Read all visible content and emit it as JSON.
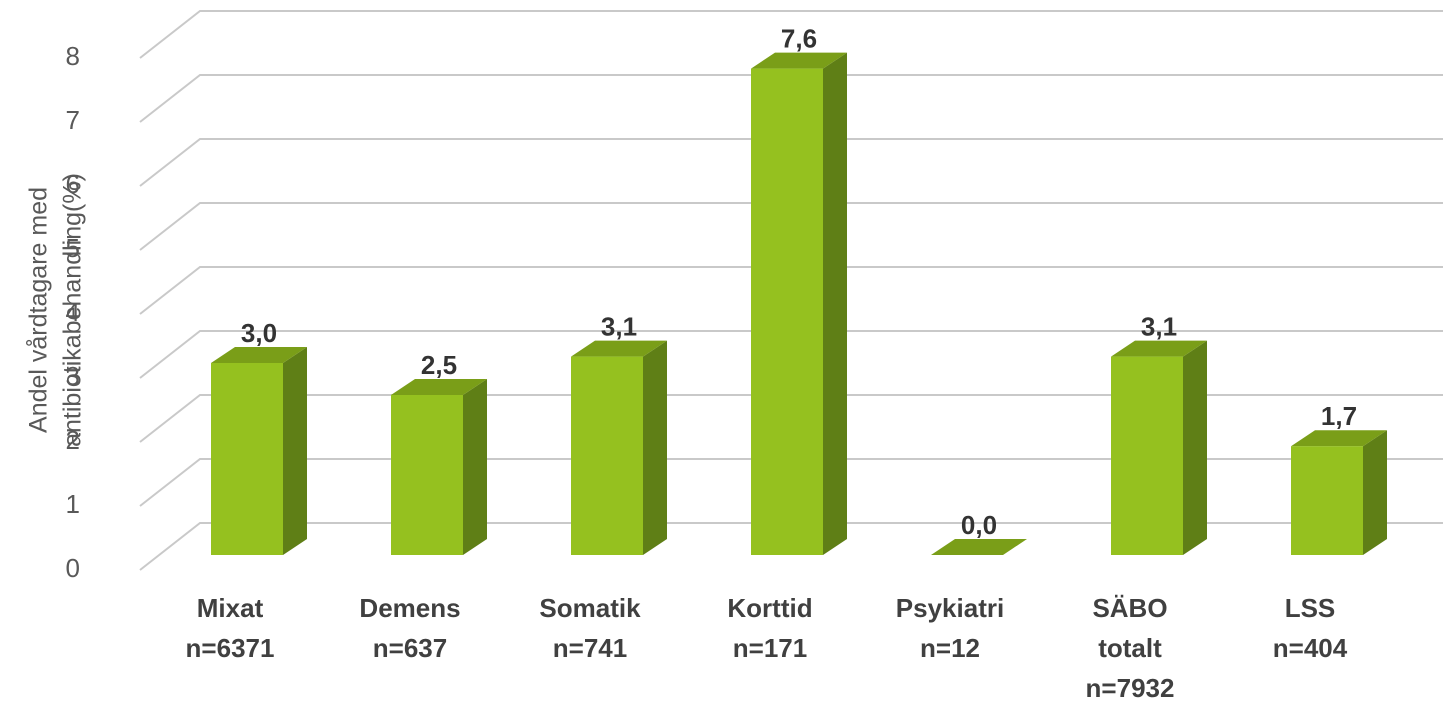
{
  "chart_data": {
    "type": "bar3d",
    "y_label": [
      "Andel vårdtagare med",
      "antibiotikabehandling(%)"
    ],
    "categories": [
      [
        "Mixat",
        "n=6371"
      ],
      [
        "Demens",
        "n=637"
      ],
      [
        "Somatik",
        "n=741"
      ],
      [
        "Korttid",
        "n=171"
      ],
      [
        "Psykiatri",
        "n=12"
      ],
      [
        "SÄBO",
        "totalt",
        "n=7932"
      ],
      [
        "LSS",
        "n=404"
      ]
    ],
    "values": [
      3.0,
      2.5,
      3.1,
      7.6,
      0.0,
      3.1,
      1.7
    ],
    "value_labels": [
      "3,0",
      "2,5",
      "3,1",
      "7,6",
      "0,0",
      "3,1",
      "1,7"
    ],
    "color": "#95c11f",
    "ylim": [
      0,
      8
    ],
    "yticks": [
      0,
      1,
      2,
      3,
      4,
      5,
      6,
      7,
      8
    ],
    "grid": true
  }
}
